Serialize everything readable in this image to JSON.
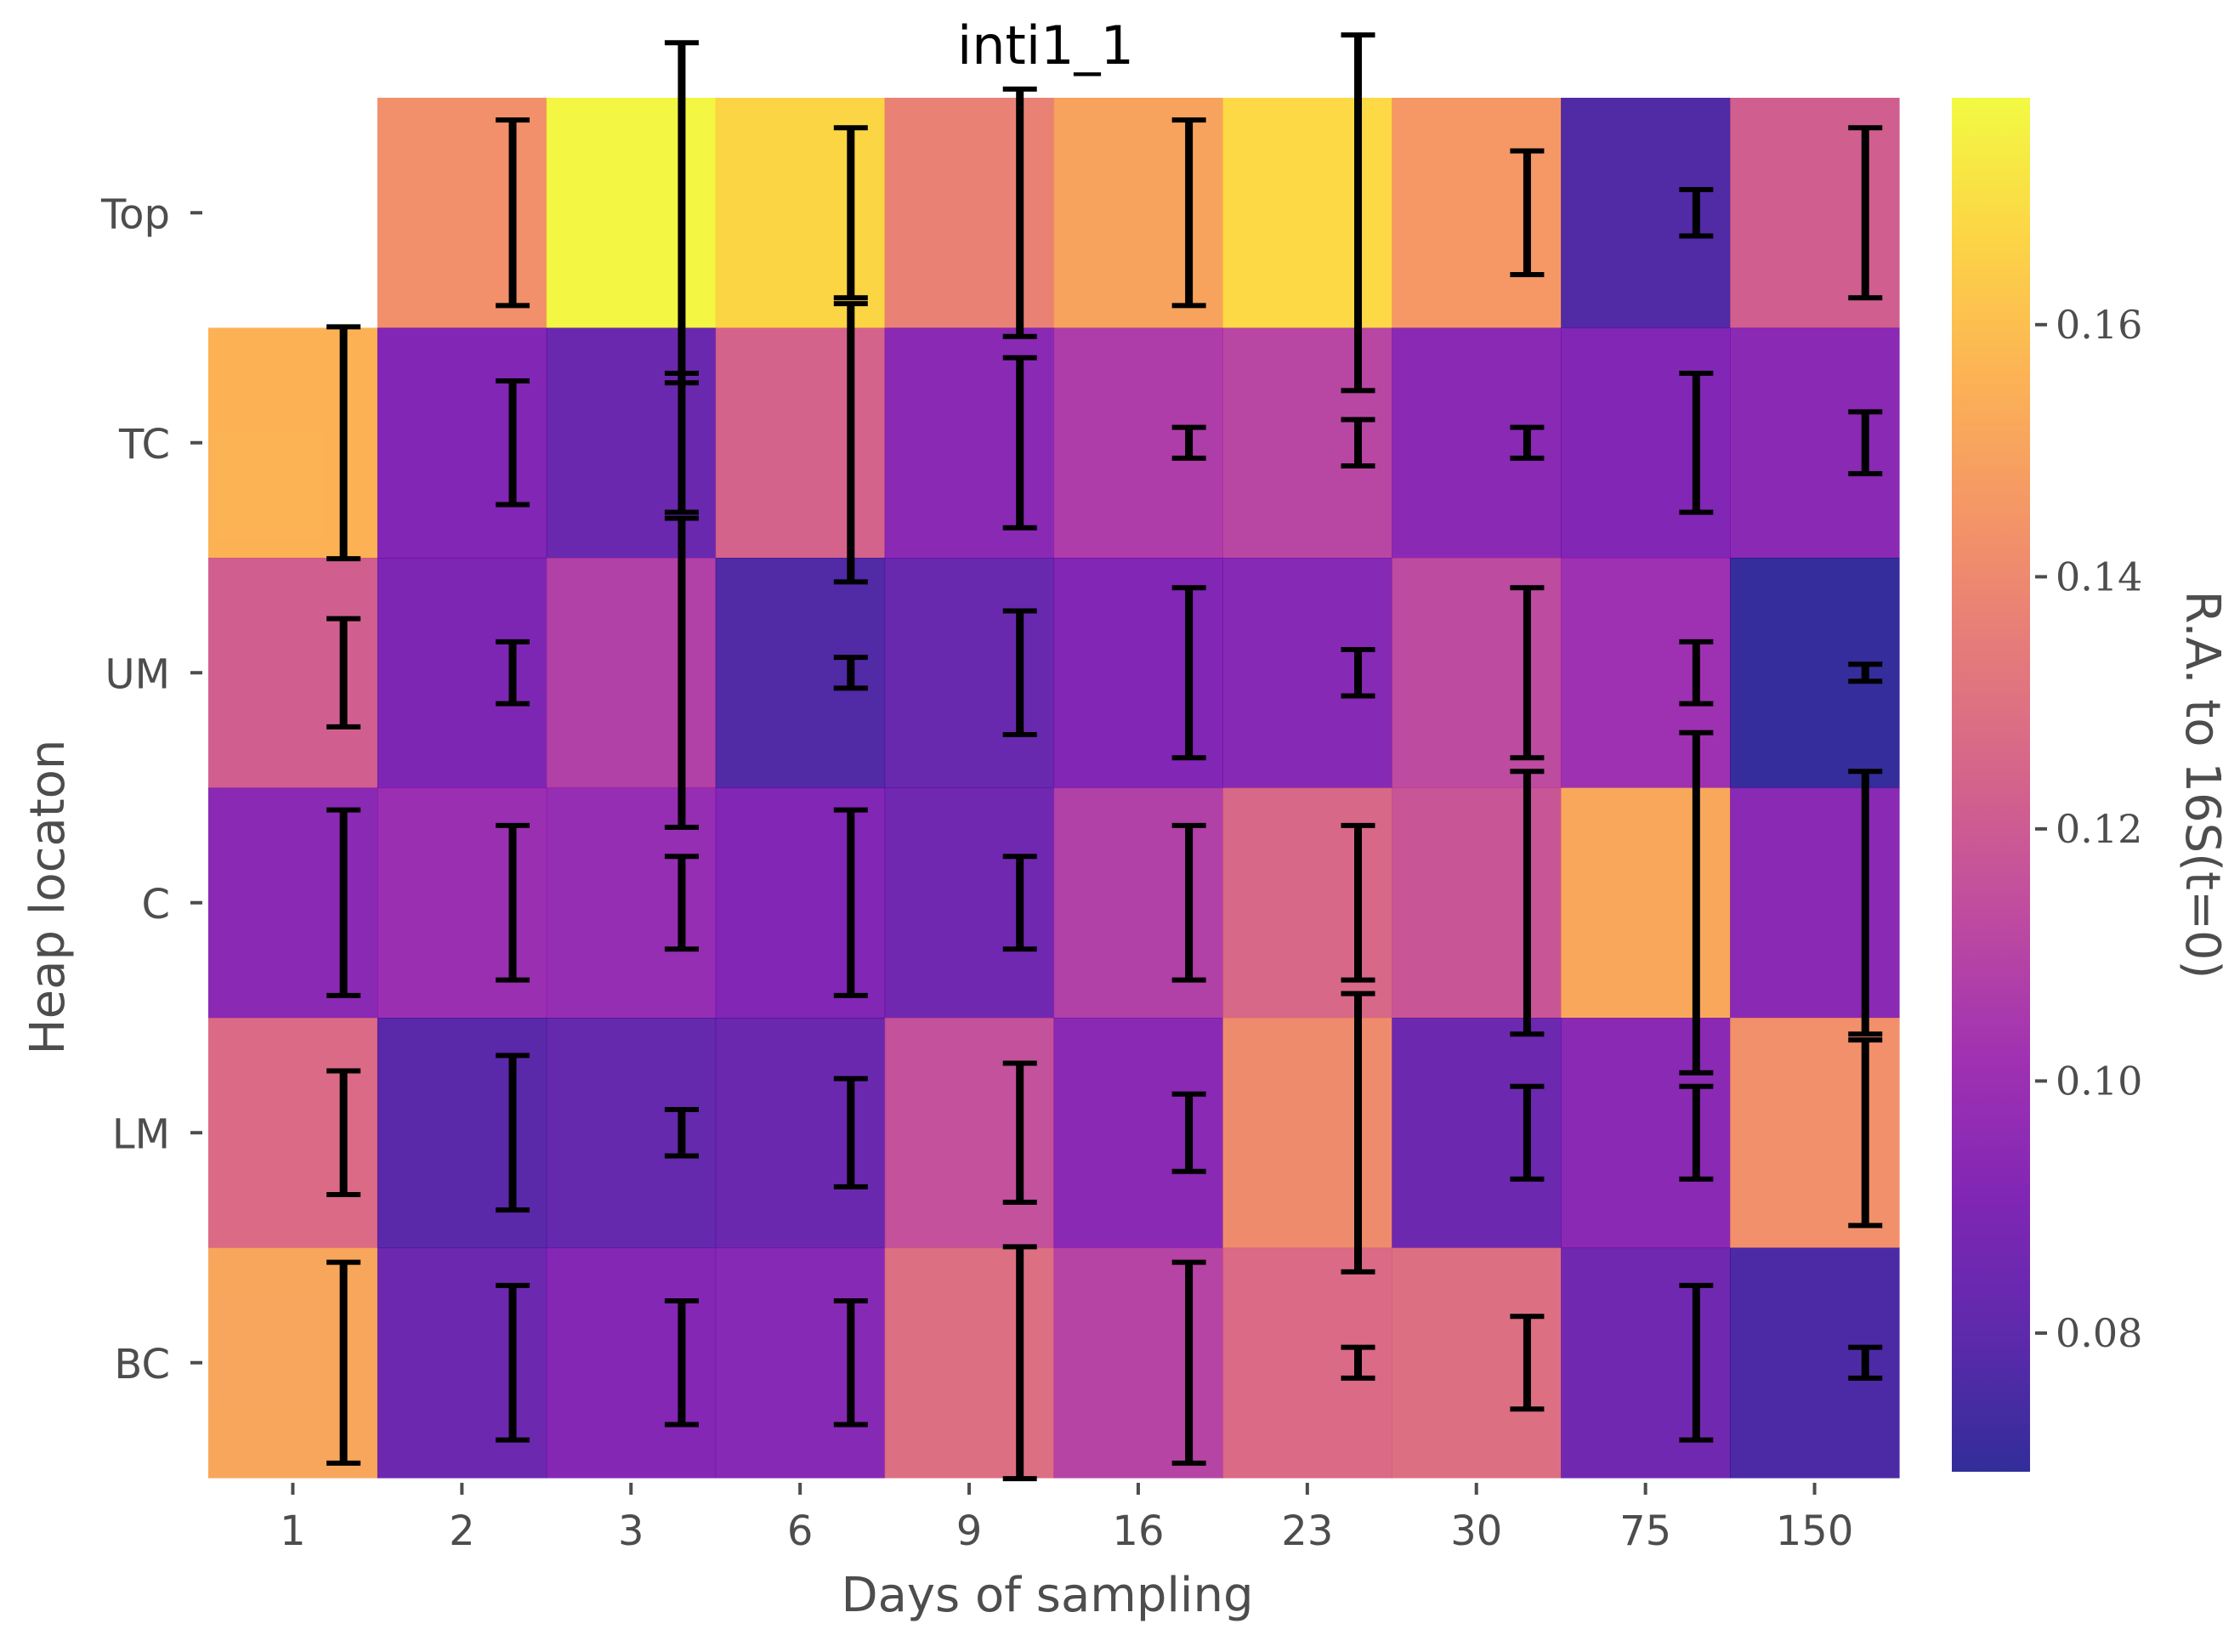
{
  "chart_data": {
    "type": "heatmap",
    "title": "inti1_1",
    "xlabel": "Days of sampling",
    "ylabel": "Heap locaton",
    "colorbar_label": "R.A. to 16S(t=0)",
    "colormap": "plasma",
    "colorbar_range": [
      0.069,
      0.178
    ],
    "colorbar_ticks": [
      "0.08",
      "0.10",
      "0.12",
      "0.14",
      "0.16"
    ],
    "colorbar_tick_values": [
      0.08,
      0.1,
      0.12,
      0.14,
      0.16
    ],
    "x_categories": [
      "1",
      "2",
      "3",
      "6",
      "9",
      "16",
      "23",
      "30",
      "75",
      "150"
    ],
    "y_categories": [
      "Top",
      "TC",
      "UM",
      "C",
      "LM",
      "BC"
    ],
    "values": [
      [
        null,
        0.143,
        0.177,
        0.167,
        0.137,
        0.15,
        0.168,
        0.146,
        0.077,
        0.122
      ],
      [
        0.156,
        0.091,
        0.084,
        0.124,
        0.094,
        0.107,
        0.111,
        0.094,
        0.091,
        0.094
      ],
      [
        0.122,
        0.09,
        0.108,
        0.077,
        0.083,
        0.091,
        0.093,
        0.113,
        0.101,
        0.07
      ],
      [
        0.094,
        0.1,
        0.098,
        0.091,
        0.086,
        0.108,
        0.126,
        0.118,
        0.152,
        0.094
      ],
      [
        0.127,
        0.079,
        0.082,
        0.084,
        0.116,
        0.094,
        0.141,
        0.085,
        0.094,
        0.143
      ],
      [
        0.151,
        0.085,
        0.092,
        0.093,
        0.129,
        0.11,
        0.127,
        0.129,
        0.086,
        0.076
      ]
    ],
    "errors": [
      [
        null,
        0.012,
        0.022,
        0.011,
        0.016,
        0.012,
        0.023,
        0.008,
        0.003,
        0.011
      ],
      [
        0.015,
        0.008,
        0.009,
        0.018,
        0.011,
        0.002,
        0.003,
        0.002,
        0.009,
        0.004
      ],
      [
        0.007,
        0.004,
        0.02,
        0.002,
        0.008,
        0.011,
        0.003,
        0.011,
        0.004,
        0.001
      ],
      [
        0.012,
        0.01,
        0.006,
        0.012,
        0.006,
        0.01,
        0.01,
        0.017,
        0.022,
        0.017
      ],
      [
        0.008,
        0.01,
        0.003,
        0.007,
        0.009,
        0.005,
        0.018,
        0.006,
        0.006,
        0.012
      ],
      [
        0.013,
        0.01,
        0.008,
        0.008,
        0.015,
        0.013,
        0.002,
        0.006,
        0.01,
        0.002
      ]
    ],
    "grid": false,
    "legend": "colorbar-right"
  }
}
